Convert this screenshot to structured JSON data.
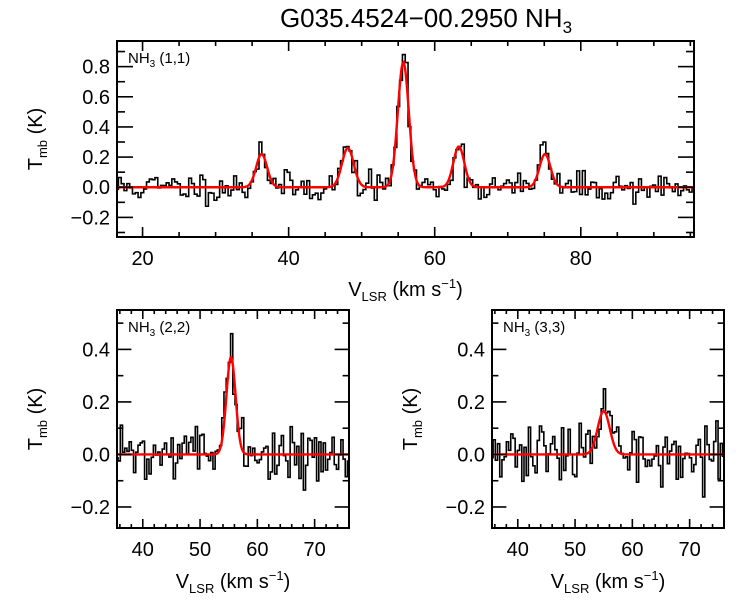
{
  "chart_data": {
    "title": "G035.4524−00.2950 NH",
    "title_subscript": "3",
    "fit_color": "#ff0000",
    "data_color": "#000000",
    "panels": [
      {
        "id": "nh3-11",
        "type": "line",
        "label": "NH",
        "label_sub": "3",
        "label_rest": " (1,1)",
        "xlabel_main": "V",
        "xlabel_sub": "LSR",
        "xlabel_rest": " (km s",
        "xlabel_sup": "−1",
        "xlabel_close": ")",
        "ylabel_main": "T",
        "ylabel_sub": "mb",
        "ylabel_rest": " (K)",
        "xlim": [
          16.5,
          95.5
        ],
        "ylim": [
          -0.33,
          0.97
        ],
        "xticks": [
          20,
          40,
          60,
          80
        ],
        "xtick_labels": [
          "20",
          "40",
          "60",
          "80"
        ],
        "xminor_step": 5,
        "yticks": [
          -0.2,
          0.0,
          0.2,
          0.4,
          0.6,
          0.8
        ],
        "ytick_labels": [
          "−0.2",
          "0.0",
          "0.2",
          "0.4",
          "0.6",
          "0.8"
        ],
        "yminor_step": 0.1,
        "channel_width": 0.385,
        "noise_rms": 0.05,
        "fit_components": [
          {
            "center": 36.3,
            "amplitude": 0.22,
            "sigma": 0.75
          },
          {
            "center": 48.1,
            "amplitude": 0.26,
            "sigma": 0.8
          },
          {
            "center": 55.7,
            "amplitude": 0.83,
            "sigma": 0.75
          },
          {
            "center": 63.3,
            "amplitude": 0.27,
            "sigma": 0.75
          },
          {
            "center": 75.1,
            "amplitude": 0.22,
            "sigma": 0.75
          }
        ],
        "peak_values": {
          "36.3": 0.3,
          "48.1": 0.27,
          "55.7": 0.88,
          "63.3": 0.27,
          "75.1": 0.3
        },
        "seed": 11
      },
      {
        "id": "nh3-22",
        "type": "line",
        "label": "NH",
        "label_sub": "3",
        "label_rest": " (2,2)",
        "xlabel_main": "V",
        "xlabel_sub": "LSR",
        "xlabel_rest": " (km s",
        "xlabel_sup": "−1",
        "xlabel_close": ")",
        "ylabel_main": "T",
        "ylabel_sub": "mb",
        "ylabel_rest": " (K)",
        "xlim": [
          35.5,
          76.0
        ],
        "ylim": [
          -0.28,
          0.55
        ],
        "xticks": [
          40,
          50,
          60,
          70
        ],
        "xtick_labels": [
          "40",
          "50",
          "60",
          "70"
        ],
        "xminor_step": 2,
        "yticks": [
          -0.2,
          0.0,
          0.2,
          0.4
        ],
        "ytick_labels": [
          "−0.2",
          "0.0",
          "0.2",
          "0.4"
        ],
        "yminor_step": 0.1,
        "channel_width": 0.385,
        "noise_rms": 0.05,
        "fit_components": [
          {
            "center": 55.4,
            "amplitude": 0.37,
            "sigma": 0.8
          }
        ],
        "peak_values": {
          "55.4": 0.46
        },
        "seed": 22
      },
      {
        "id": "nh3-33",
        "type": "line",
        "label": "NH",
        "label_sub": "3",
        "label_rest": " (3,3)",
        "xlabel_main": "V",
        "xlabel_sub": "LSR",
        "xlabel_rest": " (km s",
        "xlabel_sup": "−1",
        "xlabel_close": ")",
        "ylabel_main": "T",
        "ylabel_sub": "mb",
        "ylabel_rest": " (K)",
        "xlim": [
          35.5,
          76.0
        ],
        "ylim": [
          -0.28,
          0.55
        ],
        "xticks": [
          40,
          50,
          60,
          70
        ],
        "xtick_labels": [
          "40",
          "50",
          "60",
          "70"
        ],
        "xminor_step": 2,
        "yticks": [
          -0.2,
          0.0,
          0.2,
          0.4
        ],
        "ytick_labels": [
          "−0.2",
          "0.0",
          "0.2",
          "0.4"
        ],
        "yminor_step": 0.1,
        "channel_width": 0.385,
        "noise_rms": 0.055,
        "fit_components": [
          {
            "center": 55.0,
            "amplitude": 0.165,
            "sigma": 1.05
          }
        ],
        "peak_values": {
          "55.0": 0.25
        },
        "seed": 33
      }
    ]
  }
}
